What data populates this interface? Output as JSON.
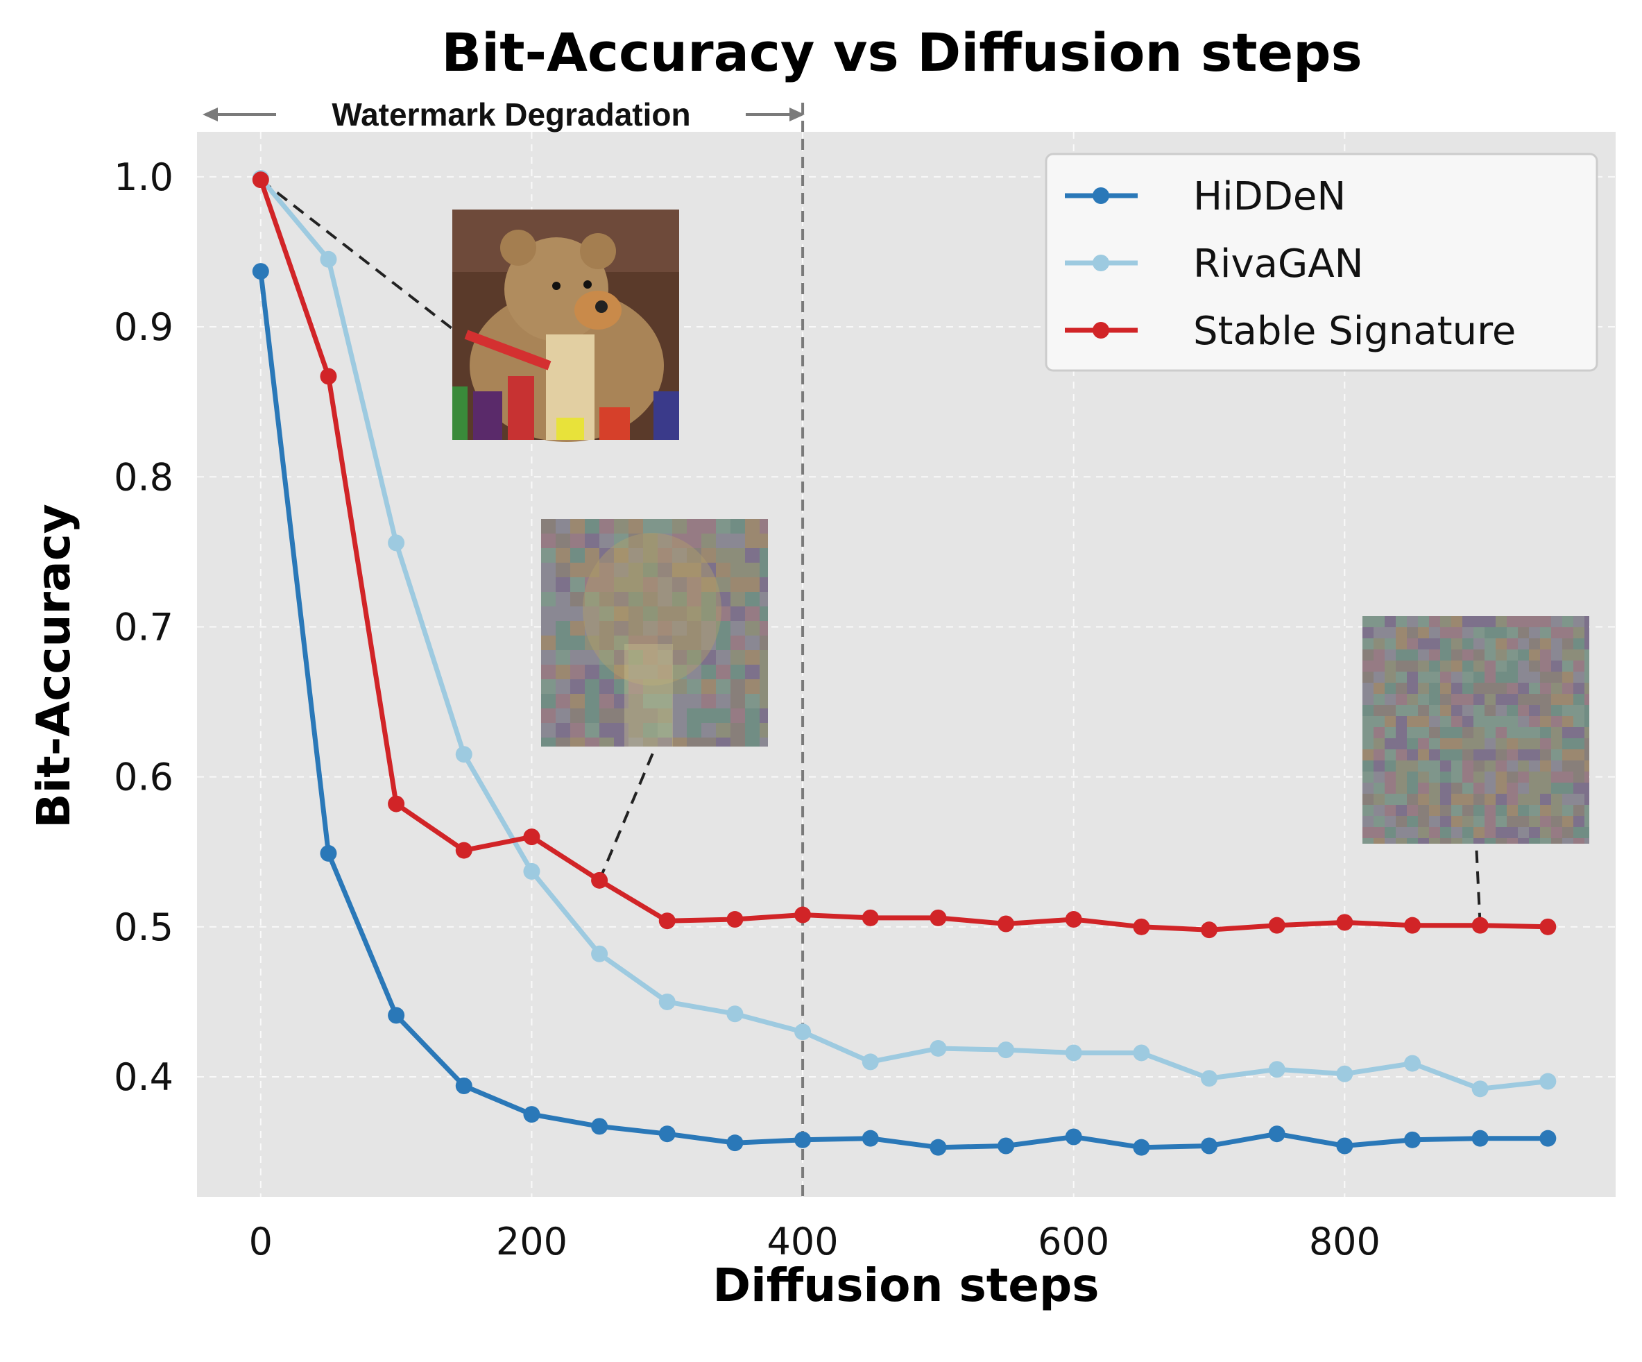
{
  "chart_data": {
    "type": "line",
    "title": "Bit-Accuracy vs Diffusion steps",
    "xlabel": "Diffusion steps",
    "ylabel": "Bit-Accuracy",
    "xlim": [
      -47,
      1000
    ],
    "ylim": [
      0.32,
      1.03
    ],
    "xticks": [
      0,
      200,
      400,
      600,
      800
    ],
    "yticks": [
      0.4,
      0.5,
      0.6,
      0.7,
      0.8,
      0.9,
      1.0
    ],
    "xtick_labels": [
      "0",
      "200",
      "400",
      "600",
      "800"
    ],
    "ytick_labels": [
      "0.4",
      "0.5",
      "0.6",
      "0.7",
      "0.8",
      "0.9",
      "1.0"
    ],
    "grid": true,
    "legend_position": "top-right",
    "x": [
      0,
      50,
      100,
      150,
      200,
      250,
      300,
      350,
      400,
      450,
      500,
      550,
      600,
      650,
      700,
      750,
      800,
      850,
      900,
      950
    ],
    "series": [
      {
        "name": "HiDDeN",
        "color": "#2a78b8",
        "values": [
          0.937,
          0.549,
          0.441,
          0.394,
          0.375,
          0.367,
          0.362,
          0.356,
          0.358,
          0.359,
          0.353,
          0.354,
          0.36,
          0.353,
          0.354,
          0.362,
          0.354,
          0.358,
          0.359,
          0.359
        ]
      },
      {
        "name": "RivaGAN",
        "color": "#9dcae0",
        "values": [
          0.999,
          0.945,
          0.756,
          0.615,
          0.537,
          0.482,
          0.45,
          0.442,
          0.43,
          0.41,
          0.419,
          0.418,
          0.416,
          0.416,
          0.399,
          0.405,
          0.402,
          0.409,
          0.392,
          0.397
        ]
      },
      {
        "name": "Stable Signature",
        "color": "#d12427",
        "values": [
          0.998,
          0.867,
          0.582,
          0.551,
          0.56,
          0.531,
          0.504,
          0.505,
          0.508,
          0.506,
          0.506,
          0.502,
          0.505,
          0.5,
          0.498,
          0.501,
          0.503,
          0.501,
          0.501,
          0.5
        ]
      }
    ],
    "annotations": {
      "watermark_degradation_label": "Watermark Degradation",
      "cutoff_x": 400,
      "callout_points": [
        {
          "x": 0,
          "y": 0.998
        },
        {
          "x": 250,
          "y": 0.531
        },
        {
          "x": 900,
          "y": 0.501
        }
      ]
    }
  }
}
